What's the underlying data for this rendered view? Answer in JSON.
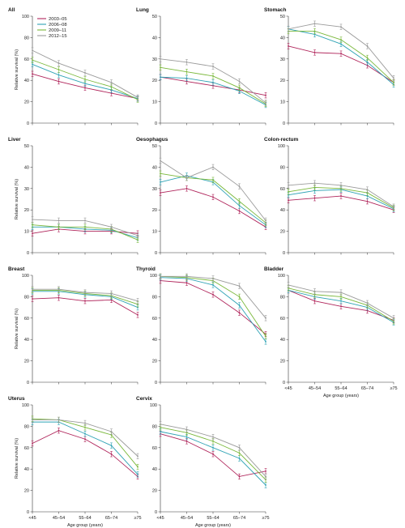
{
  "colors": {
    "2003–05": "#b0255b",
    "2006–08": "#2fa3b5",
    "2009–11": "#7ab83a",
    "2012–15": "#9b9b9b"
  },
  "legend": [
    "2003–05",
    "2006–08",
    "2009–11",
    "2012–15"
  ],
  "age_groups": [
    "<45",
    "45–54",
    "55–64",
    "65–74",
    "≥75"
  ],
  "ylabel": "Relative survival (%)",
  "xlabel": "Age group (years)",
  "chart_data": [
    {
      "type": "line",
      "title": "All",
      "ylim": [
        0,
        100
      ],
      "yticks": [
        0,
        20,
        40,
        60,
        80,
        100
      ],
      "series": [
        {
          "name": "2003–05",
          "values": [
            46,
            39,
            33,
            28,
            23
          ]
        },
        {
          "name": "2006–08",
          "values": [
            55,
            45,
            37,
            31,
            23
          ]
        },
        {
          "name": "2009–11",
          "values": [
            59,
            50,
            41,
            34,
            22
          ]
        },
        {
          "name": "2012–15",
          "values": [
            68,
            56,
            47,
            38,
            24
          ]
        }
      ]
    },
    {
      "type": "line",
      "title": "Lung",
      "ylim": [
        0,
        50
      ],
      "yticks": [
        0,
        10,
        20,
        30,
        40,
        50
      ],
      "series": [
        {
          "name": "2003–05",
          "values": [
            21.5,
            19.5,
            17.5,
            15.5,
            13
          ]
        },
        {
          "name": "2006–08",
          "values": [
            21.5,
            21,
            19,
            15,
            8.5
          ]
        },
        {
          "name": "2009–11",
          "values": [
            26,
            24,
            22,
            16.5,
            9
          ]
        },
        {
          "name": "2012–15",
          "values": [
            30,
            28.5,
            26.5,
            19.5,
            9.5
          ]
        }
      ]
    },
    {
      "type": "line",
      "title": "Stomach",
      "ylim": [
        0,
        50
      ],
      "yticks": [
        0,
        10,
        20,
        30,
        40,
        50
      ],
      "series": [
        {
          "name": "2003–05",
          "values": [
            36,
            33,
            32.5,
            27,
            19
          ]
        },
        {
          "name": "2006–08",
          "values": [
            44,
            41.5,
            37,
            28.5,
            18
          ]
        },
        {
          "name": "2009–11",
          "values": [
            43,
            43,
            39,
            30.5,
            19
          ]
        },
        {
          "name": "2012–15",
          "values": [
            44,
            46.5,
            45,
            36,
            21
          ]
        }
      ]
    },
    {
      "type": "line",
      "title": "Liver",
      "ylim": [
        0,
        50
      ],
      "yticks": [
        0,
        10,
        20,
        30,
        40,
        50
      ],
      "series": [
        {
          "name": "2003–05",
          "values": [
            9,
            11,
            10,
            10,
            9
          ]
        },
        {
          "name": "2006–08",
          "values": [
            12,
            12,
            11,
            10.5,
            7
          ]
        },
        {
          "name": "2009–11",
          "values": [
            13,
            12,
            12,
            11,
            6
          ]
        },
        {
          "name": "2012–15",
          "values": [
            15.5,
            15,
            15,
            12,
            8
          ]
        }
      ]
    },
    {
      "type": "line",
      "title": "Oesophagus",
      "ylim": [
        0,
        50
      ],
      "yticks": [
        0,
        10,
        20,
        30,
        40,
        50
      ],
      "series": [
        {
          "name": "2003–05",
          "values": [
            28,
            30,
            26,
            19.5,
            12
          ]
        },
        {
          "name": "2006–08",
          "values": [
            33,
            36,
            33,
            22,
            13
          ]
        },
        {
          "name": "2009–11",
          "values": [
            37,
            35,
            34,
            24,
            14
          ]
        },
        {
          "name": "2012–15",
          "values": [
            43,
            35,
            40,
            31,
            15
          ]
        }
      ]
    },
    {
      "type": "line",
      "title": "Colon-rectum",
      "ylim": [
        0,
        100
      ],
      "yticks": [
        0,
        20,
        40,
        60,
        80,
        100
      ],
      "series": [
        {
          "name": "2003–05",
          "values": [
            49,
            51,
            53,
            48,
            40
          ]
        },
        {
          "name": "2006–08",
          "values": [
            54,
            58,
            59,
            53,
            41
          ]
        },
        {
          "name": "2009–11",
          "values": [
            57,
            61,
            60,
            56,
            42
          ]
        },
        {
          "name": "2012–15",
          "values": [
            63,
            65,
            63,
            59,
            43
          ]
        }
      ]
    },
    {
      "type": "line",
      "title": "Breast",
      "ylim": [
        0,
        100
      ],
      "yticks": [
        0,
        20,
        40,
        60,
        80,
        100
      ],
      "series": [
        {
          "name": "2003–05",
          "values": [
            78,
            79,
            76,
            77,
            63
          ]
        },
        {
          "name": "2006–08",
          "values": [
            85,
            85,
            82,
            80,
            70
          ]
        },
        {
          "name": "2009–11",
          "values": [
            86,
            86,
            83,
            81,
            73
          ]
        },
        {
          "name": "2012–15",
          "values": [
            87,
            87,
            84,
            83,
            76
          ]
        }
      ]
    },
    {
      "type": "line",
      "title": "Thyroid",
      "ylim": [
        0,
        100
      ],
      "yticks": [
        0,
        20,
        40,
        60,
        80,
        100
      ],
      "series": [
        {
          "name": "2003–05",
          "values": [
            95,
            93,
            82,
            65,
            45
          ]
        },
        {
          "name": "2006–08",
          "values": [
            98,
            97,
            91,
            72,
            38
          ]
        },
        {
          "name": "2009–11",
          "values": [
            99,
            98,
            95,
            80,
            43
          ]
        },
        {
          "name": "2012–15",
          "values": [
            99,
            99,
            97,
            90,
            60
          ]
        }
      ]
    },
    {
      "type": "line",
      "title": "Bladder",
      "ylim": [
        0,
        100
      ],
      "yticks": [
        0,
        20,
        40,
        60,
        80,
        100
      ],
      "series": [
        {
          "name": "2003–05",
          "values": [
            86,
            76,
            71,
            67,
            58
          ]
        },
        {
          "name": "2006–08",
          "values": [
            86,
            80,
            76,
            70,
            56
          ]
        },
        {
          "name": "2009–11",
          "values": [
            88,
            82,
            80,
            72,
            57
          ]
        },
        {
          "name": "2012–15",
          "values": [
            91,
            85,
            84,
            74,
            60
          ]
        }
      ]
    },
    {
      "type": "line",
      "title": "Uterus",
      "ylim": [
        0,
        100
      ],
      "yticks": [
        0,
        20,
        40,
        60,
        80,
        100
      ],
      "series": [
        {
          "name": "2003–05",
          "values": [
            64,
            76,
            68,
            54,
            33
          ]
        },
        {
          "name": "2006–08",
          "values": [
            84,
            84,
            73,
            62,
            35
          ]
        },
        {
          "name": "2009–11",
          "values": [
            87,
            86,
            79,
            72,
            42
          ]
        },
        {
          "name": "2012–15",
          "values": [
            86,
            86,
            83,
            75,
            52
          ]
        }
      ]
    },
    {
      "type": "line",
      "title": "Cervix",
      "ylim": [
        0,
        100
      ],
      "yticks": [
        0,
        20,
        40,
        60,
        80,
        100
      ],
      "series": [
        {
          "name": "2003–05",
          "values": [
            73,
            66,
            54,
            33,
            38
          ]
        },
        {
          "name": "2006–08",
          "values": [
            75,
            70,
            60,
            50,
            25
          ]
        },
        {
          "name": "2009–11",
          "values": [
            79,
            74,
            66,
            55,
            30
          ]
        },
        {
          "name": "2012–15",
          "values": [
            82,
            77,
            70,
            60,
            33
          ]
        }
      ]
    }
  ]
}
